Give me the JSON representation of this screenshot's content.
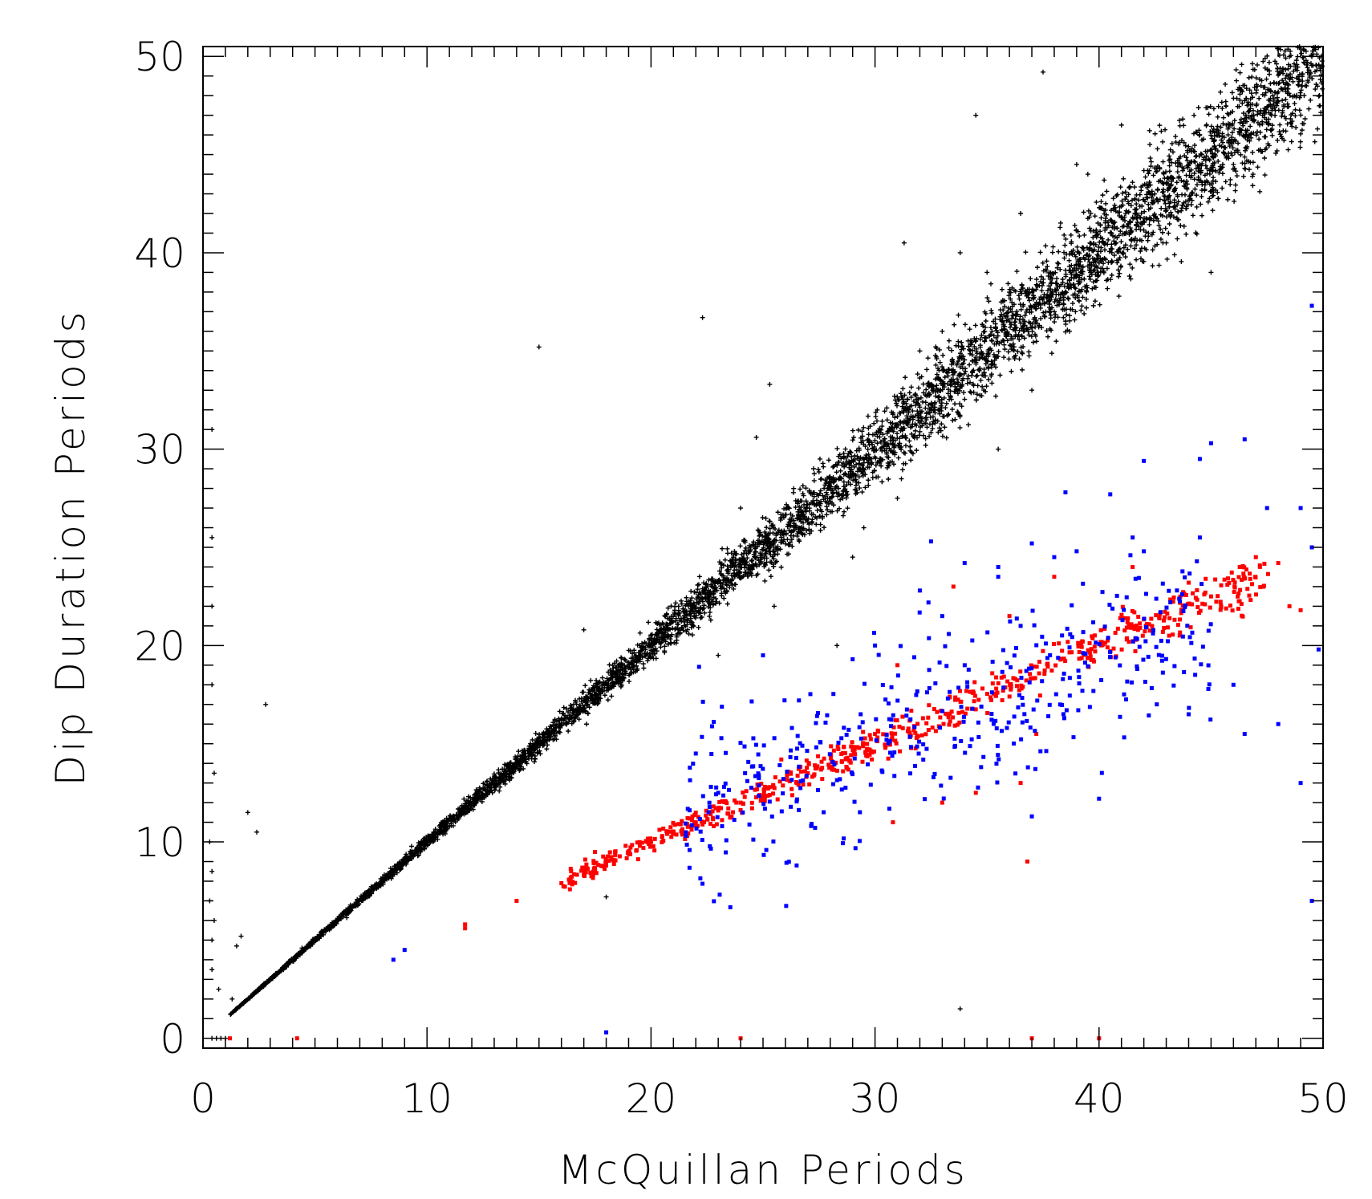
{
  "chart_data": {
    "type": "scatter",
    "title": "",
    "xlabel": "McQuillan Periods",
    "ylabel": "Dip Duration Periods",
    "xlim": [
      0,
      50
    ],
    "ylim": [
      -0.5,
      50.5
    ],
    "x_ticks": [
      "0",
      "10",
      "20",
      "30",
      "40",
      "50"
    ],
    "y_ticks": [
      "0",
      "10",
      "20",
      "30",
      "40",
      "50"
    ],
    "x_tick_values": [
      0,
      10,
      20,
      30,
      40,
      50
    ],
    "y_tick_values": [
      0,
      10,
      20,
      30,
      40,
      50
    ],
    "grid": false,
    "legend": "none",
    "series": [
      {
        "color": "#000000",
        "marker": "plus",
        "trend": {
          "x_range": [
            1.2,
            50
          ],
          "slope": 1.0,
          "intercept": 0.0,
          "relative_scatter": 0.025
        },
        "outliers": [
          [
            15.0,
            35.2
          ],
          [
            22.3,
            36.7
          ],
          [
            25.3,
            33.3
          ],
          [
            24.7,
            30.6
          ],
          [
            34.5,
            47.0
          ],
          [
            37.5,
            49.2
          ],
          [
            28.3,
            20.0
          ],
          [
            17.0,
            20.8
          ],
          [
            2.8,
            17.0
          ],
          [
            2.0,
            11.5
          ],
          [
            2.4,
            10.5
          ],
          [
            0.4,
            31.0
          ],
          [
            0.4,
            25.5
          ],
          [
            0.4,
            22.0
          ],
          [
            0.4,
            18.0
          ],
          [
            0.5,
            13.5
          ],
          [
            0.3,
            10.0
          ],
          [
            0.4,
            8.5
          ],
          [
            0.3,
            7.0
          ],
          [
            0.5,
            6.0
          ],
          [
            0.4,
            5.0
          ],
          [
            0.4,
            3.5
          ],
          [
            0.7,
            2.5
          ],
          [
            1.3,
            2.0
          ],
          [
            1.5,
            4.7
          ],
          [
            1.7,
            5.2
          ],
          [
            0.4,
            0.0
          ],
          [
            0.6,
            0.0
          ],
          [
            0.8,
            0.0
          ],
          [
            1.0,
            0.0
          ],
          [
            18.0,
            7.2
          ],
          [
            33.8,
            1.5
          ],
          [
            39.0,
            44.5
          ],
          [
            41.0,
            46.5
          ],
          [
            46.0,
            44.5
          ],
          [
            49.0,
            48.0
          ],
          [
            31.3,
            40.5
          ],
          [
            33.8,
            40.0
          ],
          [
            36.5,
            42.0
          ],
          [
            29.5,
            26.0
          ],
          [
            35.5,
            30.0
          ],
          [
            38.0,
            37.0
          ],
          [
            39.5,
            44.0
          ],
          [
            40.5,
            41.0
          ],
          [
            44.5,
            44.5
          ],
          [
            43.0,
            40.5
          ],
          [
            47.3,
            47.0
          ],
          [
            45.0,
            39.0
          ],
          [
            24.0,
            27.0
          ],
          [
            23.0,
            19.5
          ],
          [
            25.5,
            22.0
          ],
          [
            29.0,
            24.5
          ],
          [
            31.0,
            27.5
          ],
          [
            32.0,
            35.0
          ],
          [
            33.0,
            36.0
          ],
          [
            35.0,
            39.0
          ],
          [
            37.0,
            33.0
          ]
        ]
      },
      {
        "color": "#ff0000",
        "marker": "square",
        "trend": {
          "x_range": [
            16,
            47.5
          ],
          "slope": 0.5,
          "intercept": 0.0,
          "relative_scatter": 0.028
        },
        "outliers": [
          [
            11.7,
            5.8
          ],
          [
            11.7,
            5.6
          ],
          [
            14.0,
            7.0
          ],
          [
            16.0,
            7.9
          ],
          [
            17.0,
            8.3
          ],
          [
            17.5,
            8.5
          ],
          [
            18.0,
            9.0
          ],
          [
            19.0,
            9.5
          ],
          [
            19.5,
            9.8
          ],
          [
            20.0,
            10.0
          ],
          [
            20.5,
            10.3
          ],
          [
            21.0,
            10.5
          ],
          [
            22.0,
            11.0
          ],
          [
            23.0,
            11.6
          ],
          [
            24.0,
            12.0
          ],
          [
            30.8,
            11.0
          ],
          [
            33.0,
            12.0
          ],
          [
            34.5,
            12.5
          ],
          [
            36.5,
            13.0
          ],
          [
            37.2,
            15.5
          ],
          [
            31.0,
            19.0
          ],
          [
            33.5,
            23.0
          ],
          [
            36.0,
            21.5
          ],
          [
            38.0,
            23.5
          ],
          [
            41.5,
            24.0
          ],
          [
            47.0,
            24.5
          ],
          [
            48.0,
            24.2
          ],
          [
            48.5,
            22.0
          ],
          [
            49.0,
            21.8
          ],
          [
            44.0,
            23.2
          ],
          [
            45.0,
            22.5
          ],
          [
            36.8,
            9.0
          ],
          [
            1.2,
            0.0
          ],
          [
            4.2,
            0.0
          ],
          [
            24.0,
            0.0
          ],
          [
            37.0,
            0.0
          ],
          [
            40.0,
            0.0
          ],
          [
            27.0,
            13.5
          ],
          [
            26.5,
            13.0
          ],
          [
            29.5,
            15.0
          ],
          [
            30.0,
            15.5
          ]
        ]
      },
      {
        "color": "#0000ff",
        "marker": "square",
        "cluster": {
          "x_range": [
            21.5,
            45.0
          ],
          "y_center_slope": 0.42,
          "y_center_intercept": 2.3,
          "spread": 2.2
        },
        "outliers": [
          [
            8.5,
            4.0
          ],
          [
            9.0,
            4.5
          ],
          [
            18.0,
            0.3
          ],
          [
            26.5,
            8.8
          ],
          [
            40.0,
            12.2
          ],
          [
            37.0,
            11.3
          ],
          [
            44.0,
            16.5
          ],
          [
            46.5,
            15.5
          ],
          [
            46.0,
            18.0
          ],
          [
            48.0,
            16.0
          ],
          [
            49.0,
            13.0
          ],
          [
            49.5,
            7.0
          ],
          [
            49.5,
            37.3
          ],
          [
            46.5,
            30.5
          ],
          [
            45.0,
            30.3
          ],
          [
            44.5,
            29.5
          ],
          [
            42.0,
            29.4
          ],
          [
            38.5,
            27.8
          ],
          [
            40.5,
            27.7
          ],
          [
            49.0,
            27.0
          ],
          [
            47.5,
            27.0
          ],
          [
            41.5,
            25.5
          ],
          [
            44.5,
            25.5
          ],
          [
            32.5,
            25.3
          ],
          [
            37.0,
            25.2
          ],
          [
            39.0,
            24.8
          ],
          [
            42.0,
            24.8
          ],
          [
            38.0,
            24.5
          ],
          [
            34.0,
            24.2
          ],
          [
            35.5,
            24.0
          ],
          [
            32.0,
            22.8
          ],
          [
            33.0,
            21.5
          ],
          [
            35.5,
            23.5
          ],
          [
            36.5,
            21.0
          ],
          [
            30.0,
            20.0
          ],
          [
            29.0,
            19.3
          ],
          [
            25.0,
            19.5
          ],
          [
            22.0,
            14.5
          ],
          [
            23.0,
            12.5
          ],
          [
            49.5,
            25.0
          ],
          [
            49.8,
            19.8
          ]
        ]
      }
    ]
  }
}
